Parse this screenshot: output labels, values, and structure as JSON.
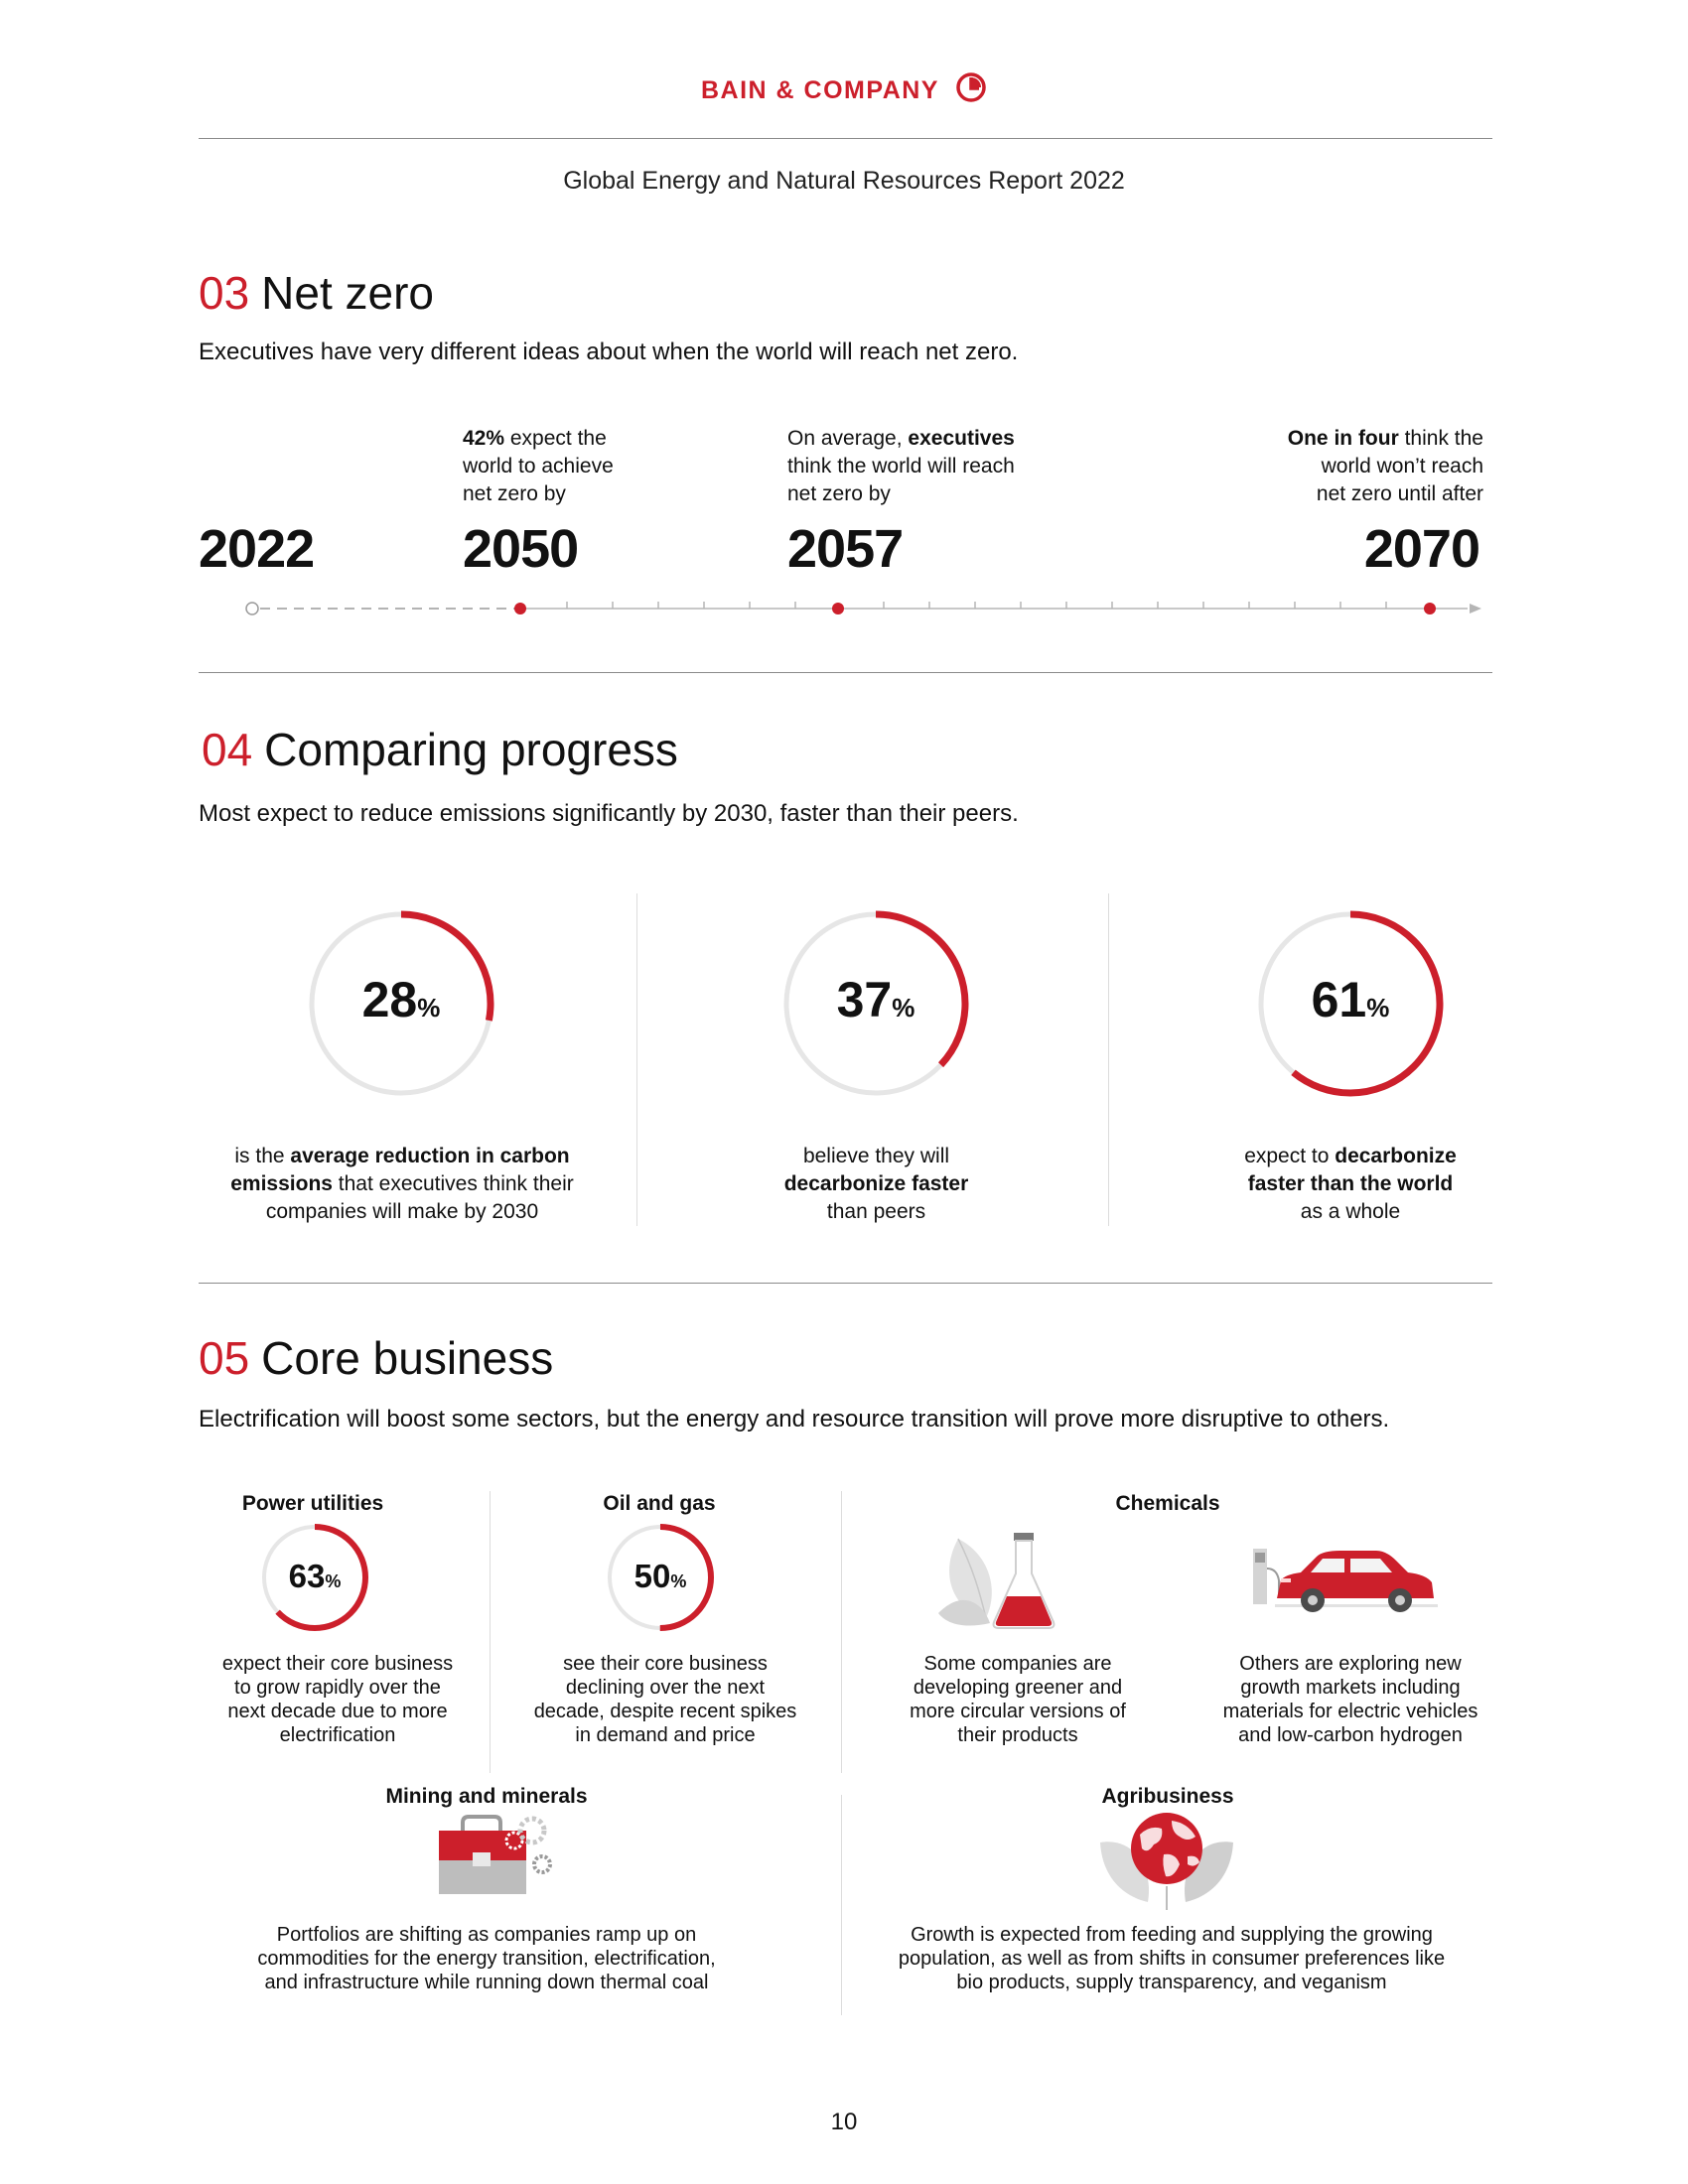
{
  "header": {
    "brand": "BAIN & COMPANY",
    "report_title": "Global Energy and Natural Resources Report 2022"
  },
  "sections": {
    "net_zero": {
      "num": "03",
      "title": "Net zero",
      "subtitle": "Executives have very different ideas about when the world will reach net zero.",
      "years": [
        "2022",
        "2050",
        "2057",
        "2070"
      ],
      "annotations": {
        "a2050": {
          "bold": "42%",
          "line1_rest": " expect the",
          "line2": "world to achieve",
          "line3": "net zero by"
        },
        "a2057": {
          "line1_pre": "On average, ",
          "line1_bold": "executives",
          "line2": "think the world will reach",
          "line3": "net zero by"
        },
        "a2070": {
          "bold": "One in four",
          "line1_rest": " think the",
          "line2": "world won’t reach",
          "line3": "net zero until after"
        }
      }
    },
    "comparing": {
      "num": "04",
      "title": "Comparing progress",
      "subtitle": "Most expect to reduce emissions significantly by 2030, faster than their peers.",
      "stats": [
        {
          "value": 28,
          "value_text": "28",
          "unit": "%",
          "cap1_pre": "is the ",
          "cap1_bold": "average reduction in carbon",
          "cap2_bold": "emissions",
          "cap2_rest": " that executives think their",
          "cap3": "companies will make by 2030"
        },
        {
          "value": 37,
          "value_text": "37",
          "unit": "%",
          "cap1": "believe they will",
          "cap2_bold": "decarbonize faster",
          "cap3": "than peers"
        },
        {
          "value": 61,
          "value_text": "61",
          "unit": "%",
          "cap1_pre": "expect to ",
          "cap1_bold": "decarbonize",
          "cap2_bold": "faster than the world",
          "cap3": "as a whole"
        }
      ]
    },
    "core_business": {
      "num": "05",
      "title": "Core business",
      "subtitle": "Electrification will boost some sectors, but the energy and resource transition will prove more disruptive to others.",
      "power": {
        "label": "Power utilities",
        "value": 63,
        "value_text": "63",
        "unit": "%",
        "caption": [
          "expect their core business",
          "to grow rapidly over the",
          "next decade due to more",
          "electrification"
        ]
      },
      "oil": {
        "label": "Oil and gas",
        "value": 50,
        "value_text": "50",
        "unit": "%",
        "caption": [
          "see their core business",
          "declining over the next",
          "decade, despite recent spikes",
          "in demand and price"
        ]
      },
      "chemicals": {
        "label": "Chemicals",
        "caption_left": [
          "Some companies are",
          "developing greener and",
          "more circular versions of",
          "their products"
        ],
        "caption_right": [
          "Others are exploring new",
          "growth markets including",
          "materials for electric vehicles",
          "and low-carbon hydrogen"
        ]
      },
      "mining": {
        "label": "Mining and minerals",
        "caption": [
          "Portfolios are shifting as companies ramp up on",
          "commodities for the energy transition, electrification,",
          "and infrastructure while running down thermal coal"
        ]
      },
      "agri": {
        "label": "Agribusiness",
        "caption": [
          "Growth is expected from feeding and supplying the growing",
          "population, as well as from shifts in consumer preferences like",
          "bio products, supply transparency, and veganism"
        ]
      }
    }
  },
  "page_number": "10",
  "colors": {
    "accent": "#cc1f2b",
    "ring": "#e6e6e6",
    "rule": "#8a8a8a"
  },
  "icons": [
    "bain-logo-icon",
    "flask-leaf-icon",
    "electric-car-icon",
    "briefcase-gears-icon",
    "globe-leaves-icon"
  ]
}
